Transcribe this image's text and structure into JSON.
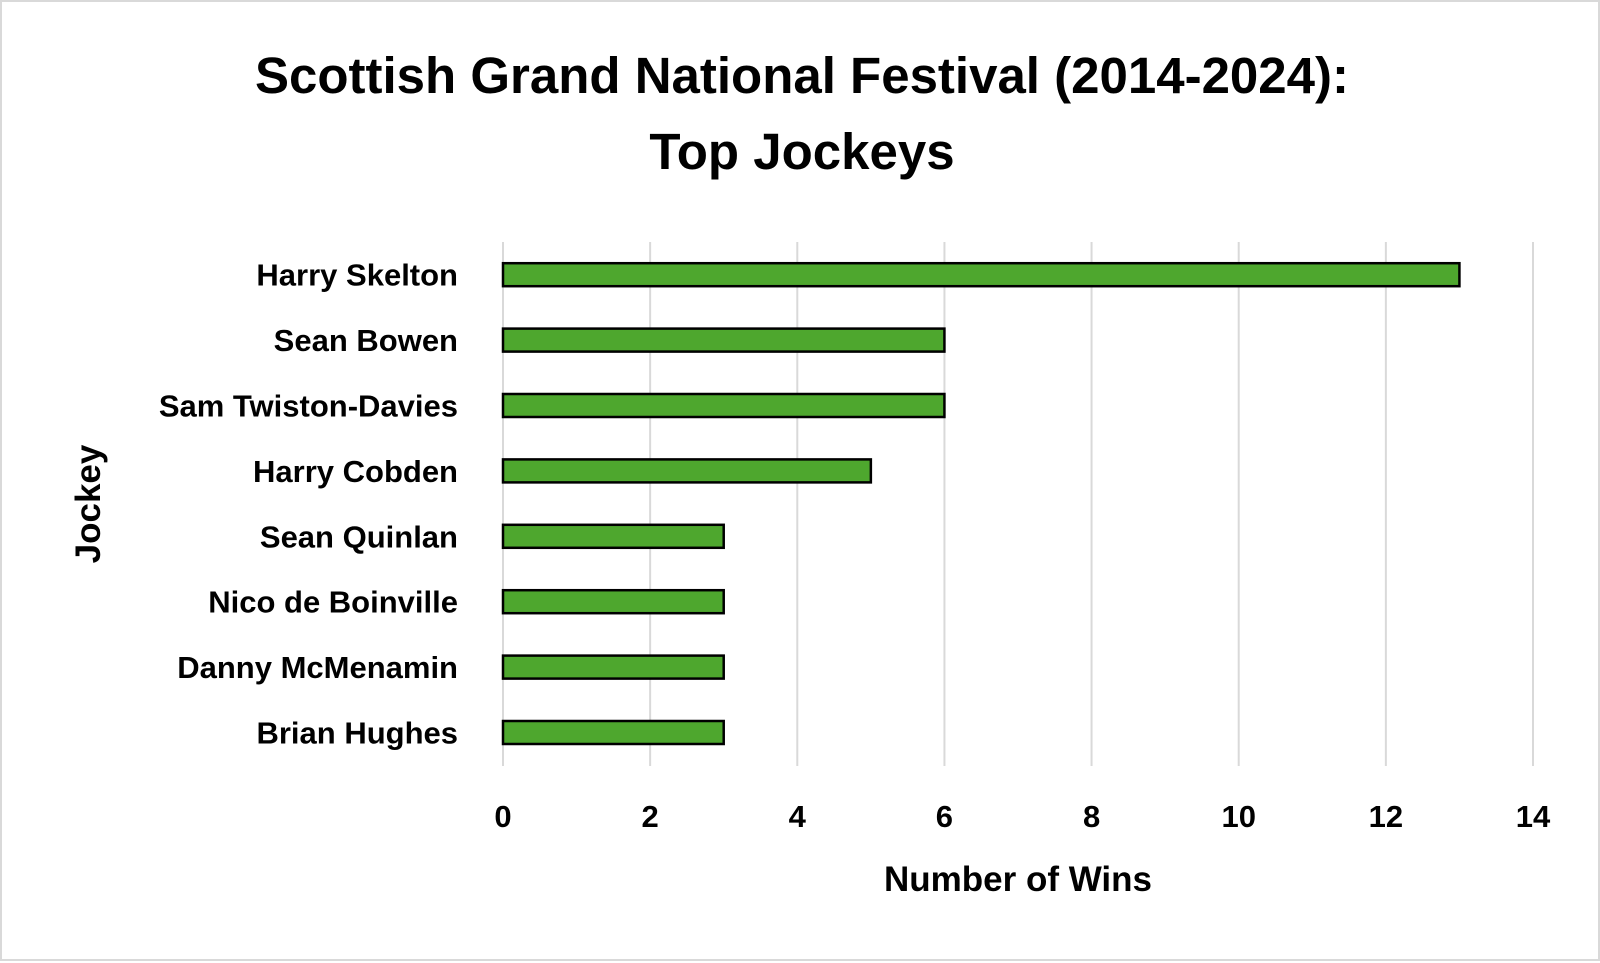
{
  "chart_data": {
    "type": "bar",
    "orientation": "horizontal",
    "title_lines": [
      "Scottish Grand National Festival (2014-2024):",
      "Top Jockeys"
    ],
    "xlabel": "Number of Wins",
    "ylabel": "Jockey",
    "categories": [
      "Harry Skelton",
      "Sean Bowen",
      "Sam Twiston-Davies",
      "Harry Cobden",
      "Sean Quinlan",
      "Nico de Boinville",
      "Danny McMenamin",
      "Brian Hughes"
    ],
    "values": [
      13,
      6,
      6,
      5,
      3,
      3,
      3,
      3
    ],
    "xlim": [
      0,
      14
    ],
    "xticks": [
      "0",
      "2",
      "4",
      "6",
      "8",
      "10",
      "12",
      "14"
    ],
    "grid": true,
    "legend": "none",
    "bar_color": "#4ea72e",
    "bar_outline_color": "#000000",
    "grid_color": "#d9d9d9"
  }
}
